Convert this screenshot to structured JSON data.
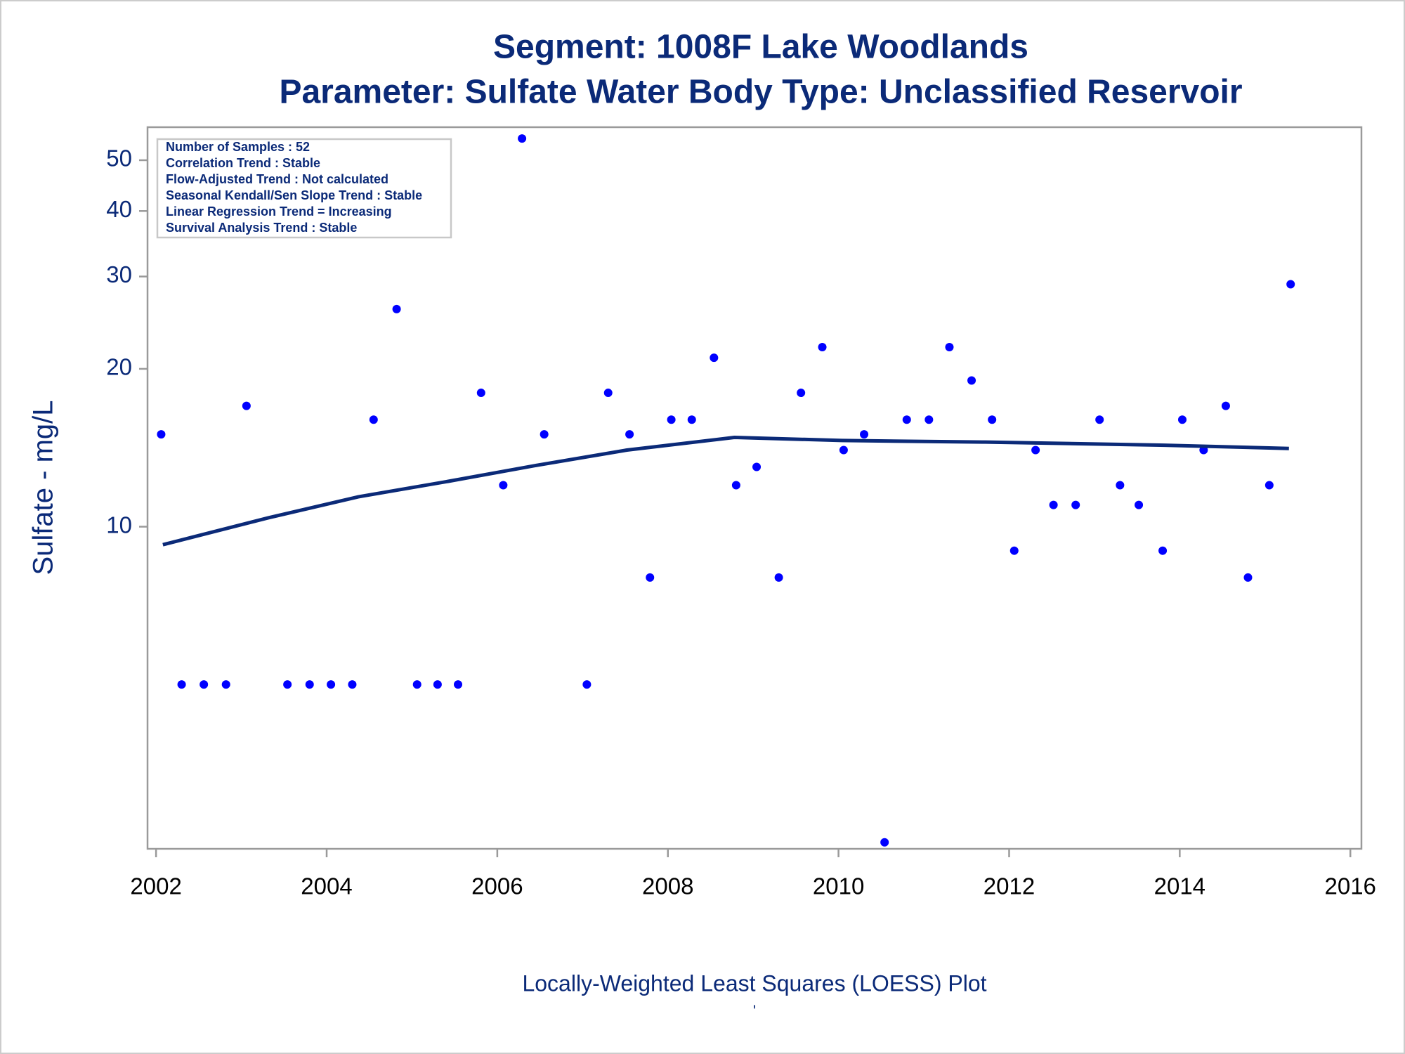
{
  "chart_data": {
    "type": "scatter",
    "title": "Segment: 1008F  Lake Woodlands",
    "subtitle": "Parameter: Sulfate   Water Body Type: Unclassified Reservoir",
    "ylabel": "Sulfate - mg/L",
    "footnote": "Locally-Weighted Least Squares (LOESS) Plot",
    "footnote2": "'",
    "annotations": [
      "Number of Samples : 52",
      "Correlation Trend : Stable",
      "Flow-Adjusted Trend : Not calculated",
      "Seasonal Kendall/Sen Slope Trend : Stable",
      "Linear Regression Trend = Increasing",
      "Survival Analysis Trend : Stable"
    ],
    "xlim": [
      2001.9,
      2016.13
    ],
    "xticks": [
      2002,
      2004,
      2006,
      2008,
      2010,
      2012,
      2014,
      2016
    ],
    "ylim": [
      2.43,
      57.8
    ],
    "yticks": [
      10,
      20,
      30,
      40,
      50
    ],
    "ylog": true,
    "series": [
      {
        "type": "scatter",
        "color": "#0000ff",
        "x": [
          2002.06,
          2002.3,
          2002.56,
          2002.82,
          2003.06,
          2003.54,
          2003.8,
          2004.05,
          2004.3,
          2004.55,
          2004.82,
          2005.06,
          2005.3,
          2005.54,
          2005.81,
          2006.07,
          2006.29,
          2006.55,
          2007.05,
          2007.3,
          2007.55,
          2007.79,
          2008.04,
          2008.28,
          2008.54,
          2008.8,
          2009.04,
          2009.3,
          2009.56,
          2009.81,
          2010.06,
          2010.3,
          2010.54,
          2010.8,
          2011.06,
          2011.3,
          2011.56,
          2011.8,
          2012.06,
          2012.31,
          2012.52,
          2012.78,
          2013.06,
          2013.3,
          2013.52,
          2013.8,
          2014.03,
          2014.28,
          2014.54,
          2014.8,
          2015.05,
          2015.3
        ],
        "values": [
          15,
          5,
          5,
          5,
          17,
          5,
          5,
          5,
          5,
          16,
          26,
          5,
          5,
          5,
          18,
          12,
          55,
          15,
          5,
          18,
          15,
          8,
          16,
          16,
          21,
          12,
          13,
          8,
          18,
          22,
          14,
          15,
          2.5,
          16,
          16,
          22,
          19,
          16,
          9,
          14,
          11,
          11,
          16,
          12,
          11,
          9,
          16,
          14,
          17,
          8,
          12,
          29
        ]
      },
      {
        "type": "line",
        "color": "#0b2a78",
        "x": [
          2002.08,
          2003.32,
          2004.37,
          2005.42,
          2006.47,
          2007.52,
          2008.78,
          2010.04,
          2011.72,
          2013.82,
          2015.28
        ],
        "values": [
          9.24,
          10.4,
          11.4,
          12.2,
          13.1,
          14.0,
          14.8,
          14.6,
          14.5,
          14.3,
          14.1
        ]
      }
    ]
  }
}
